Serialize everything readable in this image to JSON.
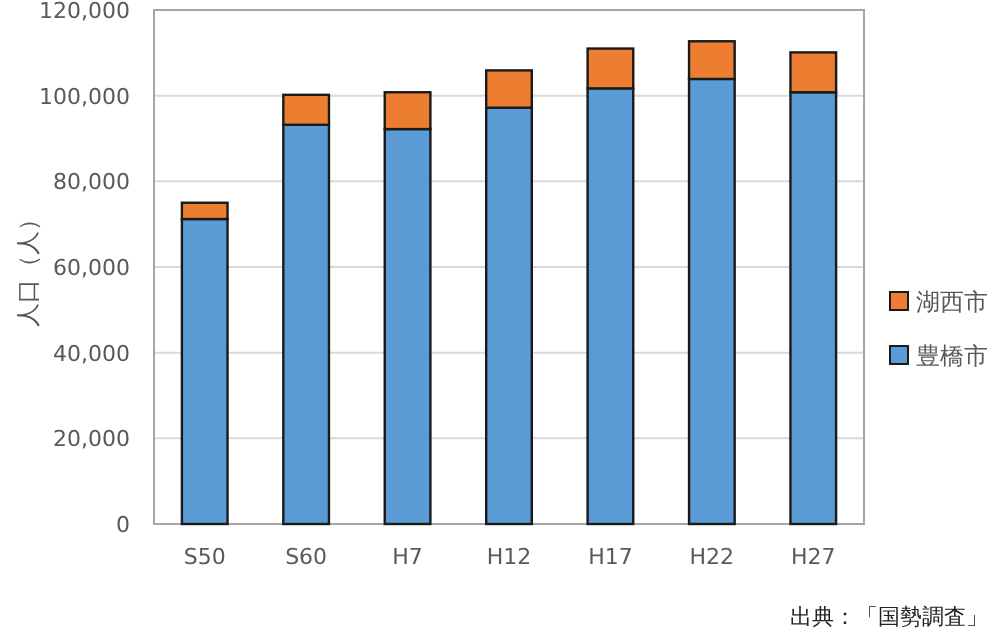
{
  "chart_data": {
    "type": "bar",
    "stacked": true,
    "ylabel": "人口（人）",
    "categories": [
      "S50",
      "S60",
      "H7",
      "H12",
      "H17",
      "H22",
      "H27"
    ],
    "series": [
      {
        "name": "豊橋市",
        "color": "#5b9bd5",
        "values": [
          71200,
          93200,
          92200,
          97200,
          101700,
          103900,
          100800
        ]
      },
      {
        "name": "湖西市",
        "color": "#ed7d31",
        "values": [
          3800,
          7000,
          8600,
          8700,
          9300,
          8800,
          9300
        ]
      }
    ],
    "ylim": [
      0,
      120000
    ],
    "yticks": [
      0,
      {
        "value": 20000,
        "label": "20,000"
      },
      {
        "value": 40000,
        "label": "40,000"
      },
      {
        "value": 60000,
        "label": "60,000"
      },
      {
        "value": 80000,
        "label": "80,000"
      },
      {
        "value": 100000,
        "label": "100,000"
      },
      {
        "value": 120000,
        "label": "120,000"
      }
    ],
    "grid": "y",
    "legend": "right",
    "annotations": [
      "出典：「国勢調査」"
    ]
  }
}
